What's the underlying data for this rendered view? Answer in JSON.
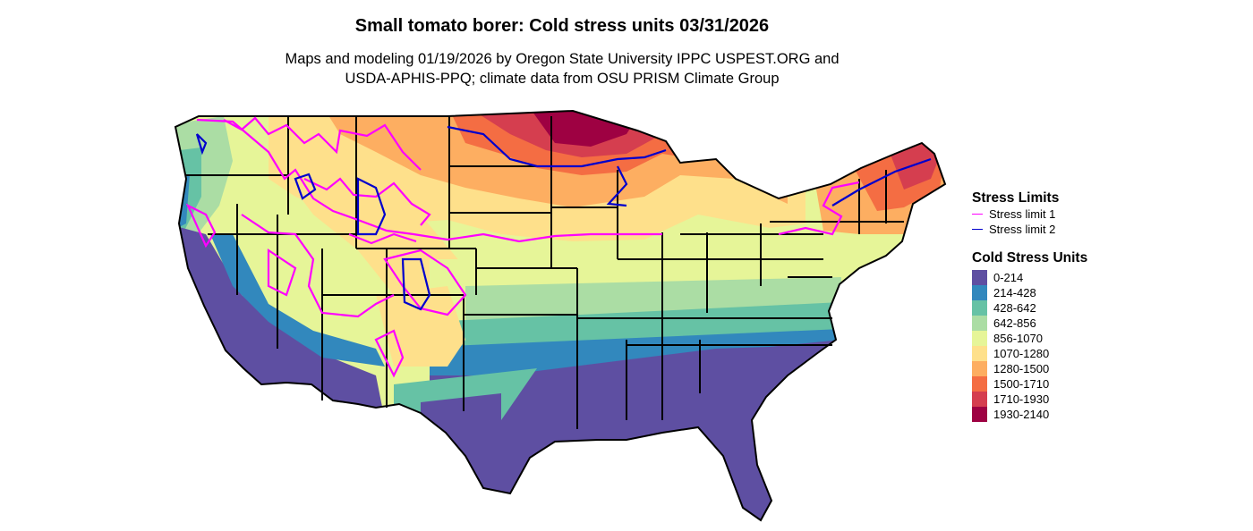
{
  "title": "Small tomato borer: Cold stress units 03/31/2026",
  "subtitle": {
    "line1": "Maps and modeling 01/19/2026 by Oregon State University IPPC USPEST.ORG and",
    "line2": "USDA-APHIS-PPQ; climate data from OSU PRISM Climate Group"
  },
  "legend": {
    "stress_title": "Stress Limits",
    "stress_items": [
      {
        "label": "Stress limit 1",
        "color": "#ff00ff"
      },
      {
        "label": "Stress limit 2",
        "color": "#0000cc"
      }
    ],
    "units_title": "Cold Stress Units",
    "units_items": [
      {
        "label": "0-214",
        "color": "#5e4fa2"
      },
      {
        "label": "214-428",
        "color": "#3288bd"
      },
      {
        "label": "428-642",
        "color": "#66c2a5"
      },
      {
        "label": "642-856",
        "color": "#abdda4"
      },
      {
        "label": "856-1070",
        "color": "#e6f598"
      },
      {
        "label": "1070-1280",
        "color": "#fee08b"
      },
      {
        "label": "1280-1500",
        "color": "#fdae61"
      },
      {
        "label": "1500-1710",
        "color": "#f46d43"
      },
      {
        "label": "1710-1930",
        "color": "#d53e4f"
      },
      {
        "label": "1930-2140",
        "color": "#9e0142"
      }
    ]
  }
}
